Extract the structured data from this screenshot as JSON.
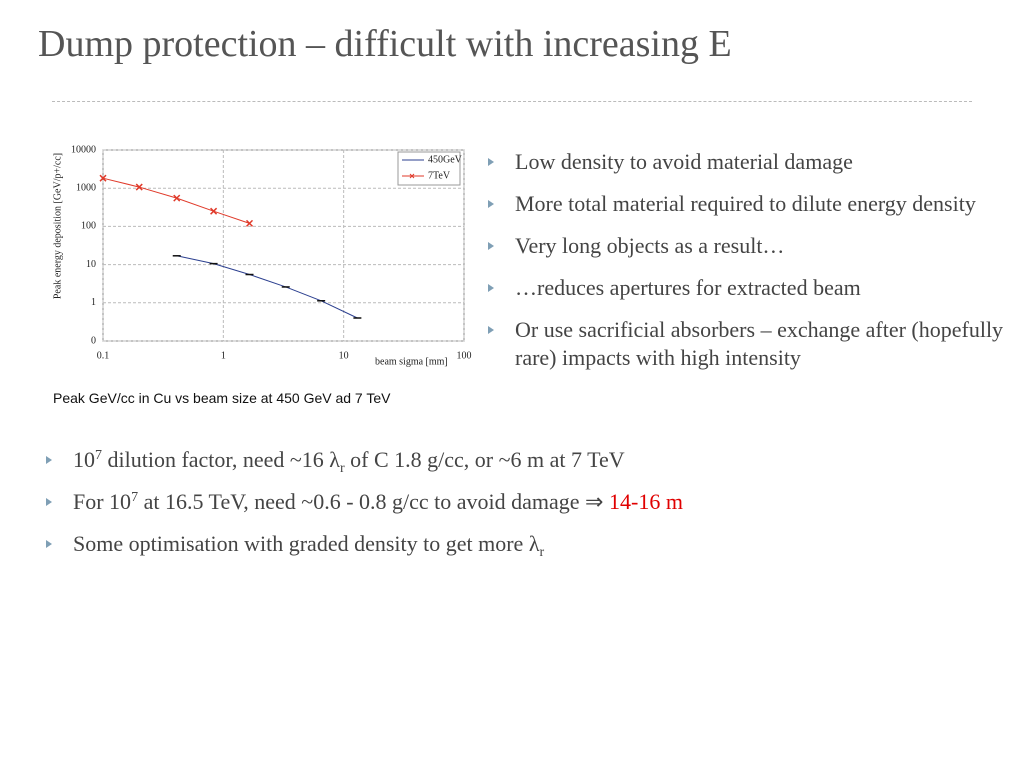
{
  "slide": {
    "title": "Dump protection – difficult with increasing E",
    "right_bullets": [
      "Low density to avoid material damage",
      "More total material required to dilute energy density",
      "Very long objects as a result…",
      "…reduces apertures for extracted beam",
      "Or use sacrificial absorbers – exchange after (hopefully rare) impacts with high intensity"
    ],
    "caption": "Peak GeV/cc in Cu vs beam size at 450 GeV ad 7 TeV",
    "bottom_bullets": [
      [
        "10",
        "7",
        " dilution factor, need ~16 ",
        "λ",
        "r",
        " of C 1.8 g/cc, or ~6 m at 7 TeV"
      ],
      [
        "For 10",
        "7",
        " at 16.5 TeV, need ~0.6 - 0.8 g/cc to avoid damage ⇒ ",
        "14-16 m"
      ],
      [
        "Some optimisation with graded density to get more ",
        "λ",
        "r"
      ]
    ],
    "highlight_color": "#e00000"
  },
  "chart_data": {
    "type": "line",
    "xlabel": "beam sigma [mm]",
    "ylabel": "Peak energy deposition [GeV/p+/cc]",
    "xlog": true,
    "ylog": true,
    "grid": true,
    "legend": "upper right",
    "xlim": [
      0.1,
      100
    ],
    "xticks": [
      0.1,
      1,
      10,
      100
    ],
    "ylim": [
      0.1,
      10000
    ],
    "yticks": [
      {
        "value": 0.1,
        "label": "0"
      },
      1,
      10,
      100,
      1000,
      10000
    ],
    "series": [
      {
        "name": "450GeV",
        "color": "#2b3f8f",
        "marker": "dash",
        "x": [
          0.41,
          0.83,
          1.65,
          3.3,
          6.5,
          13
        ],
        "values": [
          17,
          10.6,
          5.5,
          2.6,
          1.13,
          0.4
        ]
      },
      {
        "name": "7TeV",
        "color": "#e03a2a",
        "marker": "x",
        "x": [
          0.1,
          0.2,
          0.41,
          0.83,
          1.65
        ],
        "values": [
          1830,
          1070,
          550,
          250,
          120
        ]
      }
    ]
  }
}
